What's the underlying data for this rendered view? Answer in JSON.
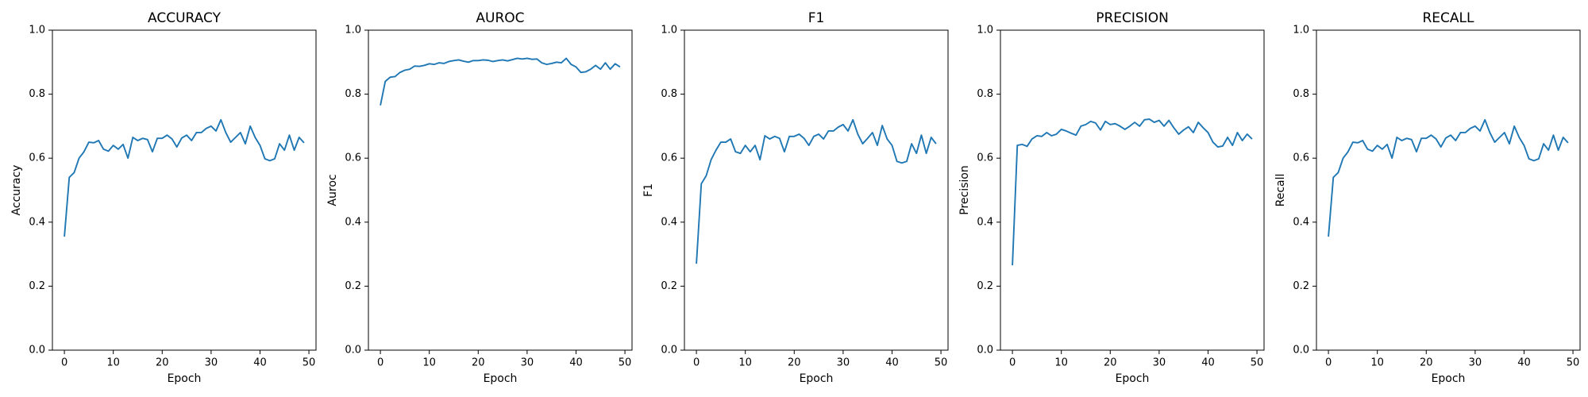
{
  "chart_data": [
    {
      "type": "line",
      "title": "ACCURACY",
      "xlabel": "Epoch",
      "ylabel": "Accuracy",
      "color": "#1f77b4",
      "x": [
        0,
        1,
        2,
        3,
        4,
        5,
        6,
        7,
        8,
        9,
        10,
        11,
        12,
        13,
        14,
        15,
        16,
        17,
        18,
        19,
        20,
        21,
        22,
        23,
        24,
        25,
        26,
        27,
        28,
        29,
        30,
        31,
        32,
        33,
        34,
        35,
        36,
        37,
        38,
        39,
        40,
        41,
        42,
        43,
        44,
        45,
        46,
        47,
        48,
        49
      ],
      "values": [
        0.355,
        0.54,
        0.555,
        0.6,
        0.62,
        0.65,
        0.648,
        0.655,
        0.628,
        0.622,
        0.64,
        0.628,
        0.643,
        0.6,
        0.665,
        0.655,
        0.662,
        0.658,
        0.62,
        0.662,
        0.662,
        0.672,
        0.66,
        0.635,
        0.663,
        0.672,
        0.655,
        0.68,
        0.68,
        0.693,
        0.7,
        0.685,
        0.72,
        0.68,
        0.65,
        0.665,
        0.68,
        0.645,
        0.7,
        0.665,
        0.64,
        0.598,
        0.592,
        0.598,
        0.645,
        0.625,
        0.672,
        0.625,
        0.665,
        0.648
      ],
      "xlim": [
        -2.45,
        51.45
      ],
      "ylim": [
        0,
        1
      ],
      "xticks": [
        0,
        10,
        20,
        30,
        40,
        50
      ],
      "yticks": [
        {
          "value": 0,
          "label": "0.0"
        },
        0.2,
        0.4,
        0.6,
        0.8,
        {
          "value": 1,
          "label": "1.0"
        }
      ]
    },
    {
      "type": "line",
      "title": "AUROC",
      "xlabel": "Epoch",
      "ylabel": "Auroc",
      "color": "#1f77b4",
      "x": [
        0,
        1,
        2,
        3,
        4,
        5,
        6,
        7,
        8,
        9,
        10,
        11,
        12,
        13,
        14,
        15,
        16,
        17,
        18,
        19,
        20,
        21,
        22,
        23,
        24,
        25,
        26,
        27,
        28,
        29,
        30,
        31,
        32,
        33,
        34,
        35,
        36,
        37,
        38,
        39,
        40,
        41,
        42,
        43,
        44,
        45,
        46,
        47,
        48,
        49
      ],
      "values": [
        0.765,
        0.84,
        0.853,
        0.855,
        0.868,
        0.875,
        0.878,
        0.888,
        0.887,
        0.89,
        0.895,
        0.893,
        0.898,
        0.896,
        0.902,
        0.905,
        0.907,
        0.903,
        0.9,
        0.905,
        0.905,
        0.907,
        0.906,
        0.902,
        0.905,
        0.907,
        0.904,
        0.908,
        0.912,
        0.91,
        0.912,
        0.909,
        0.91,
        0.898,
        0.893,
        0.896,
        0.9,
        0.898,
        0.912,
        0.893,
        0.885,
        0.868,
        0.87,
        0.878,
        0.89,
        0.878,
        0.898,
        0.878,
        0.895,
        0.885
      ],
      "xlim": [
        -2.45,
        51.45
      ],
      "ylim": [
        0,
        1
      ],
      "xticks": [
        0,
        10,
        20,
        30,
        40,
        50
      ],
      "yticks": [
        {
          "value": 0,
          "label": "0.0"
        },
        0.2,
        0.4,
        0.6,
        0.8,
        {
          "value": 1,
          "label": "1.0"
        }
      ]
    },
    {
      "type": "line",
      "title": "F1",
      "xlabel": "Epoch",
      "ylabel": "F1",
      "color": "#1f77b4",
      "x": [
        0,
        1,
        2,
        3,
        4,
        5,
        6,
        7,
        8,
        9,
        10,
        11,
        12,
        13,
        14,
        15,
        16,
        17,
        18,
        19,
        20,
        21,
        22,
        23,
        24,
        25,
        26,
        27,
        28,
        29,
        30,
        31,
        32,
        33,
        34,
        35,
        36,
        37,
        38,
        39,
        40,
        41,
        42,
        43,
        44,
        45,
        46,
        47,
        48,
        49
      ],
      "values": [
        0.27,
        0.52,
        0.545,
        0.595,
        0.625,
        0.65,
        0.65,
        0.66,
        0.62,
        0.615,
        0.64,
        0.62,
        0.64,
        0.595,
        0.67,
        0.66,
        0.668,
        0.662,
        0.62,
        0.668,
        0.668,
        0.675,
        0.662,
        0.64,
        0.668,
        0.675,
        0.66,
        0.685,
        0.685,
        0.697,
        0.705,
        0.685,
        0.72,
        0.675,
        0.645,
        0.662,
        0.68,
        0.64,
        0.702,
        0.66,
        0.64,
        0.59,
        0.585,
        0.59,
        0.645,
        0.615,
        0.672,
        0.615,
        0.665,
        0.645
      ],
      "xlim": [
        -2.45,
        51.45
      ],
      "ylim": [
        0,
        1
      ],
      "xticks": [
        0,
        10,
        20,
        30,
        40,
        50
      ],
      "yticks": [
        {
          "value": 0,
          "label": "0.0"
        },
        0.2,
        0.4,
        0.6,
        0.8,
        {
          "value": 1,
          "label": "1.0"
        }
      ]
    },
    {
      "type": "line",
      "title": "PRECISION",
      "xlabel": "Epoch",
      "ylabel": "Precision",
      "color": "#1f77b4",
      "x": [
        0,
        1,
        2,
        3,
        4,
        5,
        6,
        7,
        8,
        9,
        10,
        11,
        12,
        13,
        14,
        15,
        16,
        17,
        18,
        19,
        20,
        21,
        22,
        23,
        24,
        25,
        26,
        27,
        28,
        29,
        30,
        31,
        32,
        33,
        34,
        35,
        36,
        37,
        38,
        39,
        40,
        41,
        42,
        43,
        44,
        45,
        46,
        47,
        48,
        49
      ],
      "values": [
        0.265,
        0.64,
        0.643,
        0.637,
        0.66,
        0.67,
        0.668,
        0.68,
        0.67,
        0.675,
        0.69,
        0.685,
        0.678,
        0.672,
        0.7,
        0.705,
        0.715,
        0.71,
        0.688,
        0.715,
        0.705,
        0.708,
        0.7,
        0.69,
        0.7,
        0.712,
        0.7,
        0.72,
        0.722,
        0.712,
        0.718,
        0.7,
        0.718,
        0.695,
        0.675,
        0.688,
        0.698,
        0.68,
        0.712,
        0.695,
        0.68,
        0.65,
        0.635,
        0.638,
        0.665,
        0.64,
        0.68,
        0.655,
        0.675,
        0.66
      ],
      "xlim": [
        -2.45,
        51.45
      ],
      "ylim": [
        0,
        1
      ],
      "xticks": [
        0,
        10,
        20,
        30,
        40,
        50
      ],
      "yticks": [
        {
          "value": 0,
          "label": "0.0"
        },
        0.2,
        0.4,
        0.6,
        0.8,
        {
          "value": 1,
          "label": "1.0"
        }
      ]
    },
    {
      "type": "line",
      "title": "RECALL",
      "xlabel": "Epoch",
      "ylabel": "Recall",
      "color": "#1f77b4",
      "x": [
        0,
        1,
        2,
        3,
        4,
        5,
        6,
        7,
        8,
        9,
        10,
        11,
        12,
        13,
        14,
        15,
        16,
        17,
        18,
        19,
        20,
        21,
        22,
        23,
        24,
        25,
        26,
        27,
        28,
        29,
        30,
        31,
        32,
        33,
        34,
        35,
        36,
        37,
        38,
        39,
        40,
        41,
        42,
        43,
        44,
        45,
        46,
        47,
        48,
        49
      ],
      "values": [
        0.355,
        0.54,
        0.555,
        0.6,
        0.62,
        0.65,
        0.648,
        0.655,
        0.628,
        0.622,
        0.64,
        0.628,
        0.643,
        0.6,
        0.665,
        0.655,
        0.662,
        0.658,
        0.62,
        0.662,
        0.662,
        0.672,
        0.66,
        0.635,
        0.663,
        0.672,
        0.655,
        0.68,
        0.68,
        0.693,
        0.7,
        0.685,
        0.72,
        0.68,
        0.65,
        0.665,
        0.68,
        0.645,
        0.7,
        0.665,
        0.64,
        0.598,
        0.592,
        0.598,
        0.645,
        0.625,
        0.672,
        0.625,
        0.665,
        0.648
      ],
      "xlim": [
        -2.45,
        51.45
      ],
      "ylim": [
        0,
        1
      ],
      "xticks": [
        0,
        10,
        20,
        30,
        40,
        50
      ],
      "yticks": [
        {
          "value": 0,
          "label": "0.0"
        },
        0.2,
        0.4,
        0.6,
        0.8,
        {
          "value": 1,
          "label": "1.0"
        }
      ]
    }
  ]
}
